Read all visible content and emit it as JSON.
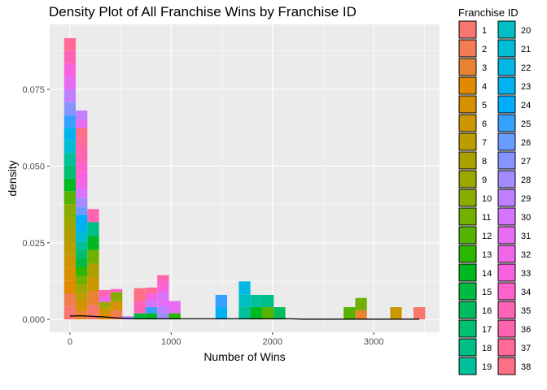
{
  "chart_data": {
    "type": "histogram",
    "title": "Density Plot of All Franchise Wins by Franchise ID",
    "xlabel": "Number of Wins",
    "ylabel": "density",
    "xlim": [
      -200,
      3650
    ],
    "ylim": [
      -0.0042,
      0.0962
    ],
    "x_ticks": [
      0,
      1000,
      2000,
      3000
    ],
    "x_tick_labels": [
      "0",
      "1000",
      "2000",
      "3000"
    ],
    "y_ticks": [
      0,
      0.025,
      0.05,
      0.075
    ],
    "y_tick_labels": [
      "0.000",
      "0.025",
      "0.050",
      "0.075"
    ],
    "bin_width": 115,
    "grid": true,
    "legend": {
      "title": "Franchise ID",
      "position": "right",
      "entries": [
        "1",
        "2",
        "3",
        "4",
        "5",
        "6",
        "7",
        "8",
        "9",
        "10",
        "11",
        "12",
        "13",
        "14",
        "15",
        "16",
        "17",
        "18",
        "19",
        "20",
        "21",
        "22",
        "23",
        "24",
        "25",
        "26",
        "27",
        "28",
        "29",
        "30",
        "31",
        "32",
        "33",
        "34",
        "35",
        "36",
        "37",
        "38"
      ],
      "colors": [
        "#F8766D",
        "#F27D53",
        "#EA8331",
        "#E18A00",
        "#D69100",
        "#CA9700",
        "#BC9D00",
        "#AC9F00",
        "#9CA700",
        "#89AC00",
        "#72B000",
        "#55B400",
        "#2BB600",
        "#00B81F",
        "#00BA43",
        "#00BC5C",
        "#00BE72",
        "#00BF86",
        "#00C19A",
        "#00BFC4",
        "#00BCD4",
        "#00B8E3",
        "#00B3F0",
        "#00ACFC",
        "#35A2FF",
        "#6A9CFF",
        "#8794FF",
        "#A58AFF",
        "#BF80FF",
        "#D575FE",
        "#E76BF3",
        "#F166E8",
        "#F962DD",
        "#FF61CC",
        "#FF63B6",
        "#FF65AE",
        "#FF6A98",
        "#FD6F83"
      ]
    },
    "bars": [
      {
        "x": 0,
        "segments": [
          [
            1,
            0.0042
          ],
          [
            2,
            0.0042
          ],
          [
            4,
            0.0043
          ],
          [
            5,
            0.0041
          ],
          [
            6,
            0.0042
          ],
          [
            7,
            0.0042
          ],
          [
            8,
            0.0041
          ],
          [
            9,
            0.0041
          ],
          [
            10,
            0.0042
          ],
          [
            12,
            0.0042
          ],
          [
            14,
            0.0041
          ],
          [
            17,
            0.0043
          ],
          [
            19,
            0.0041
          ],
          [
            21,
            0.0041
          ],
          [
            23,
            0.0041
          ],
          [
            25,
            0.0041
          ],
          [
            27,
            0.0042
          ],
          [
            29,
            0.0042
          ],
          [
            31,
            0.0042
          ],
          [
            33,
            0.0042
          ],
          [
            35,
            0.0041
          ],
          [
            37,
            0.0042
          ]
        ]
      },
      {
        "x": 115,
        "segments": [
          [
            3,
            0.0028
          ],
          [
            5,
            0.0029
          ],
          [
            7,
            0.0029
          ],
          [
            9,
            0.0028
          ],
          [
            11,
            0.0028
          ],
          [
            13,
            0.0028
          ],
          [
            15,
            0.0029
          ],
          [
            17,
            0.0028
          ],
          [
            19,
            0.0028
          ],
          [
            21,
            0.0029
          ],
          [
            23,
            0.0028
          ],
          [
            24,
            0.0028
          ],
          [
            26,
            0.0028
          ],
          [
            28,
            0.0028
          ],
          [
            30,
            0.0028
          ],
          [
            32,
            0.0029
          ],
          [
            33,
            0.0029
          ],
          [
            34,
            0.0028
          ],
          [
            35,
            0.0029
          ],
          [
            36,
            0.0028
          ],
          [
            37,
            0.0029
          ],
          [
            38,
            0.0028
          ],
          [
            31,
            0.0028
          ],
          [
            29,
            0.0029
          ]
        ]
      },
      {
        "x": 230,
        "segments": [
          [
            1,
            0.0046
          ],
          [
            3,
            0.0046
          ],
          [
            6,
            0.0045
          ],
          [
            8,
            0.0045
          ],
          [
            11,
            0.0045
          ],
          [
            14,
            0.0045
          ],
          [
            18,
            0.0045
          ],
          [
            36,
            0.0043
          ]
        ]
      },
      {
        "x": 345,
        "segments": [
          [
            4,
            0.0019
          ],
          [
            6,
            0.0019
          ],
          [
            9,
            0.0019
          ],
          [
            32,
            0.0019
          ],
          [
            35,
            0.002
          ]
        ]
      },
      {
        "x": 460,
        "segments": [
          [
            2,
            0.0029
          ],
          [
            5,
            0.003
          ],
          [
            10,
            0.003
          ],
          [
            34,
            0.001
          ]
        ]
      },
      {
        "x": 575,
        "segments": [
          [
            28,
            0.001
          ]
        ]
      },
      {
        "x": 690,
        "segments": [
          [
            15,
            0.002
          ],
          [
            35,
            0.004
          ],
          [
            38,
            0.0042
          ]
        ]
      },
      {
        "x": 805,
        "segments": [
          [
            14,
            0.002
          ],
          [
            25,
            0.002
          ],
          [
            30,
            0.0024
          ],
          [
            33,
            0.002
          ],
          [
            37,
            0.002
          ]
        ]
      },
      {
        "x": 920,
        "segments": [
          [
            28,
            0.0024
          ],
          [
            29,
            0.002
          ],
          [
            31,
            0.0024
          ],
          [
            30,
            0.002
          ],
          [
            33,
            0.002
          ],
          [
            34,
            0.002
          ],
          [
            36,
            0.0016
          ]
        ]
      },
      {
        "x": 1035,
        "segments": [
          [
            13,
            0.002
          ],
          [
            31,
            0.004
          ]
        ]
      },
      {
        "x": 1495,
        "segments": [
          [
            23,
            0.004
          ],
          [
            25,
            0.004
          ]
        ]
      },
      {
        "x": 1725,
        "segments": [
          [
            19,
            0.0042
          ],
          [
            20,
            0.004
          ],
          [
            22,
            0.0042
          ]
        ]
      },
      {
        "x": 1840,
        "segments": [
          [
            14,
            0.004
          ],
          [
            19,
            0.004
          ]
        ]
      },
      {
        "x": 1955,
        "segments": [
          [
            12,
            0.004
          ],
          [
            18,
            0.004
          ]
        ]
      },
      {
        "x": 2070,
        "segments": [
          [
            16,
            0.004
          ]
        ]
      },
      {
        "x": 2760,
        "segments": [
          [
            12,
            0.004
          ]
        ]
      },
      {
        "x": 2875,
        "segments": [
          [
            3,
            0.003
          ],
          [
            11,
            0.004
          ]
        ]
      },
      {
        "x": 3220,
        "segments": [
          [
            6,
            0.004
          ]
        ]
      },
      {
        "x": 3450,
        "segments": [
          [
            1,
            0.004
          ]
        ]
      }
    ],
    "density_line": {
      "color": "#000000",
      "x": [
        0,
        115,
        230,
        345,
        460,
        575,
        690,
        805,
        920,
        1035,
        1150,
        1265,
        1380,
        1495,
        1610,
        1725,
        1840,
        1955,
        2070,
        2185,
        2300,
        2415,
        2530,
        2645,
        2760,
        2875,
        2990,
        3105,
        3220,
        3335,
        3450
      ],
      "y": [
        0.0011,
        0.0012,
        0.001,
        0.0008,
        0.0005,
        0.0003,
        0.0002,
        0.0002,
        0.0002,
        0.0002,
        0.0002,
        0.0002,
        0.0002,
        0.0002,
        0.0002,
        0.0002,
        0.0002,
        0.0002,
        0.0002,
        0.0002,
        0.0001,
        0.0001,
        0.0001,
        0.0001,
        0.0001,
        0.0001,
        0.0001,
        0.0001,
        0.0001,
        0.0001,
        0.0001
      ]
    }
  }
}
